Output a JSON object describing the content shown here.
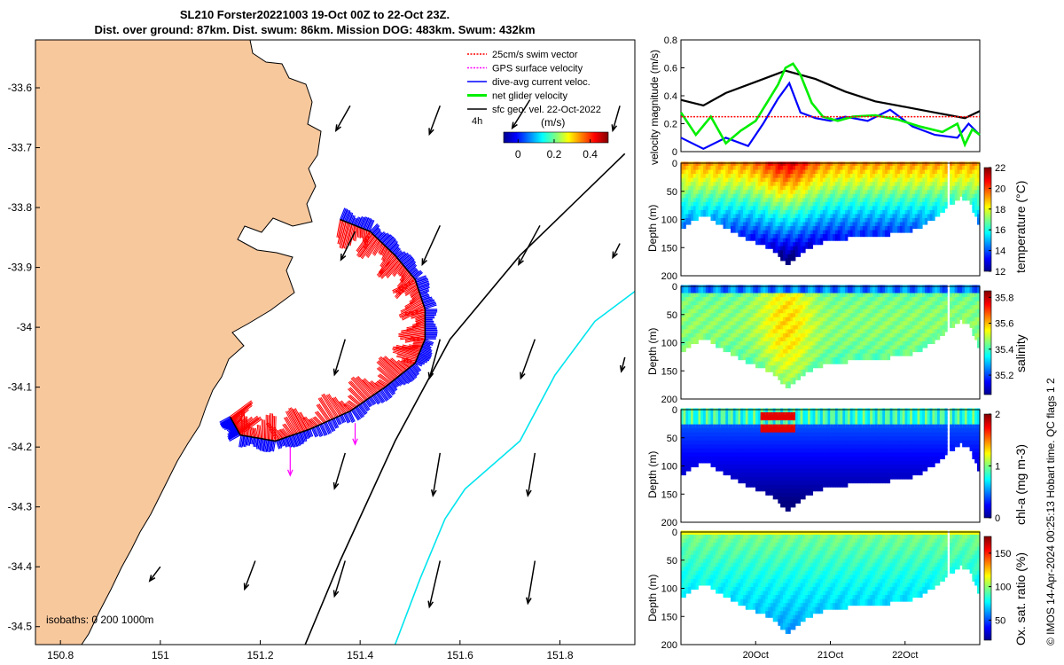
{
  "header": {
    "line1": "SL210 Forster20221003 19-Oct 00Z to 22-Oct 23Z.",
    "line2": "Dist. over ground: 87km. Dist. swum: 86km. Mission DOG: 483km. Swum: 432km"
  },
  "credit": "© IMOS 14-Apr-2024 00:25:13 Hobart time. QC flags 1  2",
  "colors": {
    "land": "#f8c89d",
    "swim": "#ff0000",
    "gps": "#ff00ff",
    "current": "#0000ff",
    "net": "#00ee00",
    "geo": "#000000",
    "isobath200": "#000000",
    "isobath1000": "#00e5ee"
  },
  "chart_data": [
    {
      "type": "scatter",
      "kind": "trajectory-map",
      "xlim": [
        150.75,
        151.95
      ],
      "ylim": [
        -34.53,
        -33.52
      ],
      "x_ticks": [
        "150.8",
        "151",
        "151.2",
        "151.4",
        "151.6",
        "151.8"
      ],
      "y_ticks": [
        "-33.6",
        "-33.7",
        "-33.8",
        "-33.9",
        "-34",
        "-34.1",
        "-34.2",
        "-34.3",
        "-34.4",
        "-34.5"
      ],
      "legend": {
        "placement": "top-right",
        "items": [
          {
            "label": "25cm/s swim vector",
            "color": "#ff0000"
          },
          {
            "label": "GPS surface velocity",
            "color": "#ff00ff"
          },
          {
            "label": "dive-avg current veloc.",
            "color": "#0000ff"
          },
          {
            "label": "net glider velocity",
            "color": "#00ee00"
          },
          {
            "label": "sfc geo. vel. 22-Oct-2022",
            "color": "#000000"
          }
        ]
      },
      "colorbar": {
        "label": "(m/s)",
        "prefix": "4h",
        "ticks": [
          "0",
          "0.2",
          "0.4"
        ],
        "range": [
          -0.08,
          0.5
        ]
      },
      "isobath_label": "isobaths: 0   200  1000m",
      "track": [
        [
          151.36,
          -33.82
        ],
        [
          151.42,
          -33.84
        ],
        [
          151.47,
          -33.88
        ],
        [
          151.51,
          -33.92
        ],
        [
          151.53,
          -33.97
        ],
        [
          151.53,
          -34.02
        ],
        [
          151.51,
          -34.06
        ],
        [
          151.45,
          -34.1
        ],
        [
          151.38,
          -34.14
        ],
        [
          151.3,
          -34.17
        ],
        [
          151.23,
          -34.19
        ],
        [
          151.16,
          -34.18
        ],
        [
          151.14,
          -34.15
        ]
      ],
      "isobath_200": [
        [
          151.93,
          -33.71
        ],
        [
          151.72,
          -33.88
        ],
        [
          151.58,
          -34.02
        ],
        [
          151.47,
          -34.19
        ],
        [
          151.36,
          -34.39
        ],
        [
          151.29,
          -34.53
        ]
      ],
      "isobath_1000": [
        [
          151.95,
          -33.94
        ],
        [
          151.87,
          -33.99
        ],
        [
          151.79,
          -34.08
        ],
        [
          151.72,
          -34.19
        ],
        [
          151.61,
          -34.27
        ],
        [
          151.57,
          -34.32
        ],
        [
          151.52,
          -34.42
        ],
        [
          151.47,
          -34.53
        ]
      ],
      "geo_vectors": [
        {
          "lon": 151.38,
          "lat": -33.63,
          "u": -0.04,
          "v": -0.07
        },
        {
          "lon": 151.56,
          "lat": -33.63,
          "u": -0.03,
          "v": -0.08
        },
        {
          "lon": 151.74,
          "lat": -33.62,
          "u": -0.05,
          "v": -0.08
        },
        {
          "lon": 151.92,
          "lat": -33.63,
          "u": -0.02,
          "v": -0.07
        },
        {
          "lon": 151.39,
          "lat": -33.84,
          "u": -0.04,
          "v": -0.08
        },
        {
          "lon": 151.56,
          "lat": -33.83,
          "u": -0.05,
          "v": -0.11
        },
        {
          "lon": 151.76,
          "lat": -33.83,
          "u": -0.06,
          "v": -0.11
        },
        {
          "lon": 151.92,
          "lat": -33.86,
          "u": -0.02,
          "v": -0.04
        },
        {
          "lon": 151.37,
          "lat": -34.02,
          "u": -0.03,
          "v": -0.1
        },
        {
          "lon": 151.56,
          "lat": -34.02,
          "u": -0.03,
          "v": -0.11
        },
        {
          "lon": 151.75,
          "lat": -34.02,
          "u": -0.04,
          "v": -0.11
        },
        {
          "lon": 151.93,
          "lat": -34.05,
          "u": -0.01,
          "v": -0.04
        },
        {
          "lon": 151.37,
          "lat": -34.21,
          "u": -0.03,
          "v": -0.1
        },
        {
          "lon": 151.56,
          "lat": -34.21,
          "u": -0.02,
          "v": -0.12
        },
        {
          "lon": 151.75,
          "lat": -34.21,
          "u": -0.02,
          "v": -0.12
        },
        {
          "lon": 151.19,
          "lat": -34.39,
          "u": -0.03,
          "v": -0.08
        },
        {
          "lon": 151.37,
          "lat": -34.39,
          "u": -0.03,
          "v": -0.1
        },
        {
          "lon": 151.56,
          "lat": -34.39,
          "u": -0.03,
          "v": -0.13
        },
        {
          "lon": 151.75,
          "lat": -34.39,
          "u": -0.02,
          "v": -0.12
        },
        {
          "lon": 151.0,
          "lat": -34.4,
          "u": -0.03,
          "v": -0.04
        }
      ],
      "gps_vectors": [
        {
          "lon": 151.39,
          "lat": -34.16,
          "u": 0.0,
          "v": -0.06
        },
        {
          "lon": 151.26,
          "lat": -34.2,
          "u": 0.0,
          "v": -0.08
        }
      ]
    },
    {
      "type": "line",
      "ylabel": "velocity magnitude (m/s)",
      "xlim": [
        19.0,
        23.0
      ],
      "ylim": [
        0,
        0.8
      ],
      "y_ticks": [
        "0",
        "0.2",
        "0.4",
        "0.6",
        "0.8"
      ],
      "series": [
        {
          "color": "#000000",
          "x": [
            19.0,
            19.3,
            19.6,
            20.0,
            20.4,
            20.8,
            21.2,
            21.6,
            22.0,
            22.4,
            22.8,
            23.0
          ],
          "values": [
            0.37,
            0.33,
            0.42,
            0.5,
            0.58,
            0.52,
            0.43,
            0.36,
            0.32,
            0.28,
            0.24,
            0.29
          ]
        },
        {
          "color": "#0000ff",
          "x": [
            19.0,
            19.3,
            19.6,
            19.9,
            20.1,
            20.3,
            20.45,
            20.6,
            20.8,
            21.0,
            21.2,
            21.5,
            21.8,
            22.1,
            22.4,
            22.7,
            22.85,
            23.0
          ],
          "values": [
            0.1,
            0.02,
            0.1,
            0.04,
            0.2,
            0.38,
            0.49,
            0.28,
            0.24,
            0.22,
            0.25,
            0.22,
            0.3,
            0.18,
            0.12,
            0.1,
            0.2,
            0.12
          ]
        },
        {
          "color": "#00ee00",
          "x": [
            19.0,
            19.2,
            19.4,
            19.6,
            19.8,
            20.0,
            20.15,
            20.3,
            20.4,
            20.5,
            20.6,
            20.75,
            20.9,
            21.1,
            21.3,
            21.6,
            21.9,
            22.2,
            22.5,
            22.7,
            22.8,
            22.9,
            23.0
          ],
          "values": [
            0.28,
            0.12,
            0.25,
            0.06,
            0.15,
            0.22,
            0.35,
            0.48,
            0.6,
            0.63,
            0.55,
            0.35,
            0.25,
            0.22,
            0.25,
            0.26,
            0.23,
            0.18,
            0.14,
            0.2,
            0.05,
            0.16,
            0.12
          ]
        },
        {
          "color": "#ff0000",
          "x": [
            19.0,
            23.0
          ],
          "values": [
            0.25,
            0.25
          ]
        }
      ]
    },
    {
      "type": "heatmap",
      "ylabel": "Depth (m)",
      "colorbar_label": "temperature (°C)",
      "ylim": [
        0,
        200
      ],
      "y_ticks": [
        "0",
        "50",
        "100",
        "150",
        "200"
      ],
      "colorbar_ticks": [
        "12",
        "14",
        "16",
        "18",
        "20",
        "22"
      ],
      "range": [
        12,
        22
      ],
      "profile_depth": {
        "x": [
          19.0,
          19.3,
          19.5,
          19.9,
          20.2,
          20.42,
          20.7,
          21.0,
          21.4,
          21.8,
          22.2,
          22.55,
          22.75,
          22.85,
          23.0
        ],
        "values": [
          115,
          90,
          105,
          135,
          150,
          178,
          150,
          135,
          130,
          125,
          115,
          80,
          60,
          65,
          110
        ]
      },
      "surface_value": 19.5,
      "deep_value": 16.5
    },
    {
      "type": "heatmap",
      "ylabel": "Depth (m)",
      "colorbar_label": "salinity",
      "ylim": [
        0,
        200
      ],
      "y_ticks": [
        "0",
        "50",
        "100",
        "150",
        "200"
      ],
      "colorbar_ticks": [
        "35.2",
        "35.4",
        "35.6",
        "35.8"
      ],
      "range": [
        35.05,
        35.85
      ],
      "surface_value": 35.35,
      "deep_value": 35.45
    },
    {
      "type": "heatmap",
      "ylabel": "Depth (m)",
      "colorbar_label": "chl-a (mg m-3)",
      "ylim": [
        0,
        200
      ],
      "y_ticks": [
        "0",
        "50",
        "100",
        "150",
        "200"
      ],
      "colorbar_ticks": [
        "0",
        "1",
        "2"
      ],
      "range": [
        0,
        2
      ],
      "surface_value": 0.9,
      "deep_value": 0.1
    },
    {
      "type": "heatmap",
      "ylabel": "Depth (m)",
      "colorbar_label": "Ox. sat. ratio (%)",
      "ylim": [
        0,
        200
      ],
      "y_ticks": [
        "0",
        "50",
        "100",
        "150",
        "200"
      ],
      "x_ticks": [
        "20Oct",
        "21Oct",
        "22Oct"
      ],
      "colorbar_ticks": [
        "50",
        "100",
        "150"
      ],
      "range": [
        20,
        175
      ],
      "surface_value": 100,
      "deep_value": 80
    }
  ]
}
